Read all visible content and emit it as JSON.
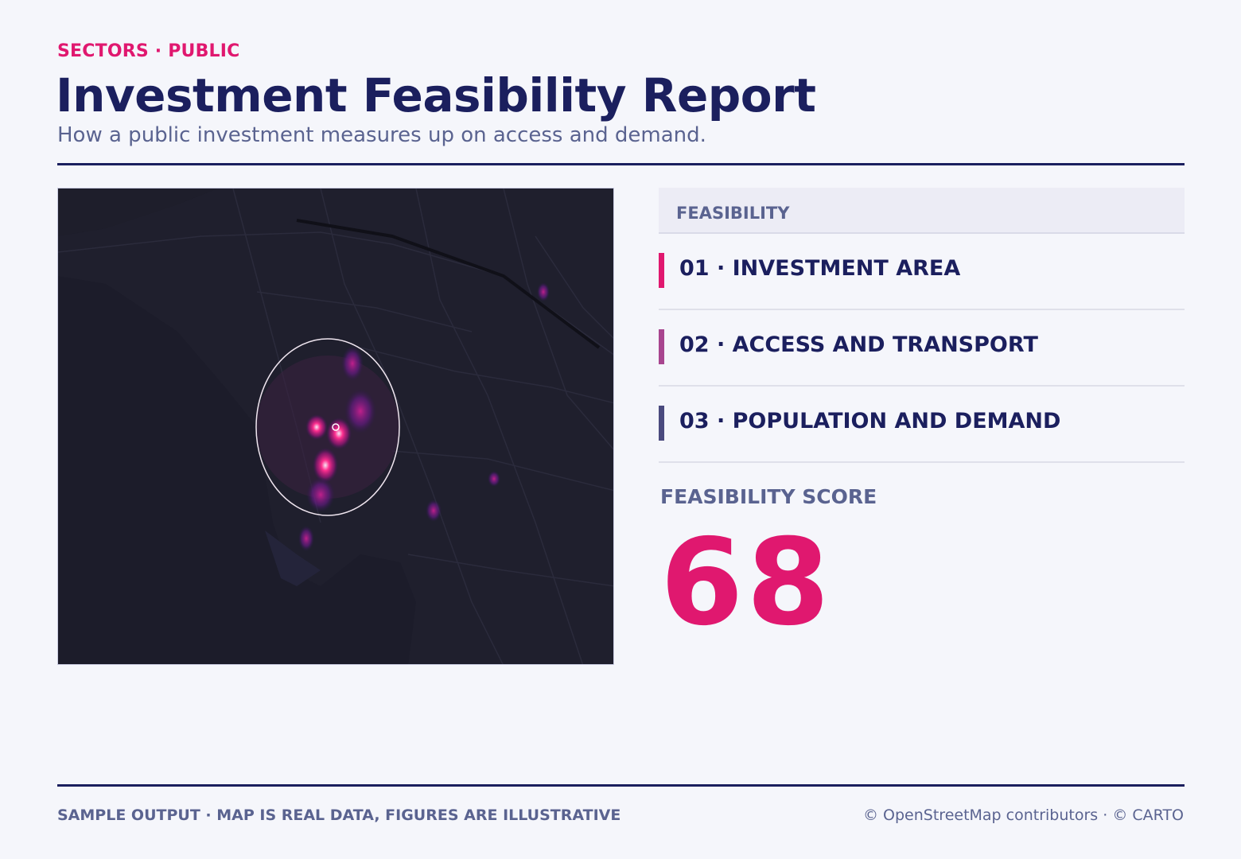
{
  "header": {
    "eyebrow": "SECTORS · PUBLIC",
    "title": "Investment Feasibility Report",
    "subtitle": "How a public investment measures up on access and demand."
  },
  "panel": {
    "heading": "FEASIBILITY",
    "items": [
      "01 · INVESTMENT AREA",
      "02 · ACCESS AND TRANSPORT",
      "03 · POPULATION AND DEMAND"
    ],
    "score_label": "FEASIBILITY SCORE",
    "score": 68
  },
  "footer": {
    "note": "SAMPLE OUTPUT · MAP IS REAL DATA, FIGURES ARE ILLUSTRATIVE",
    "credits": "© OpenStreetMap contributors · © CARTO"
  }
}
